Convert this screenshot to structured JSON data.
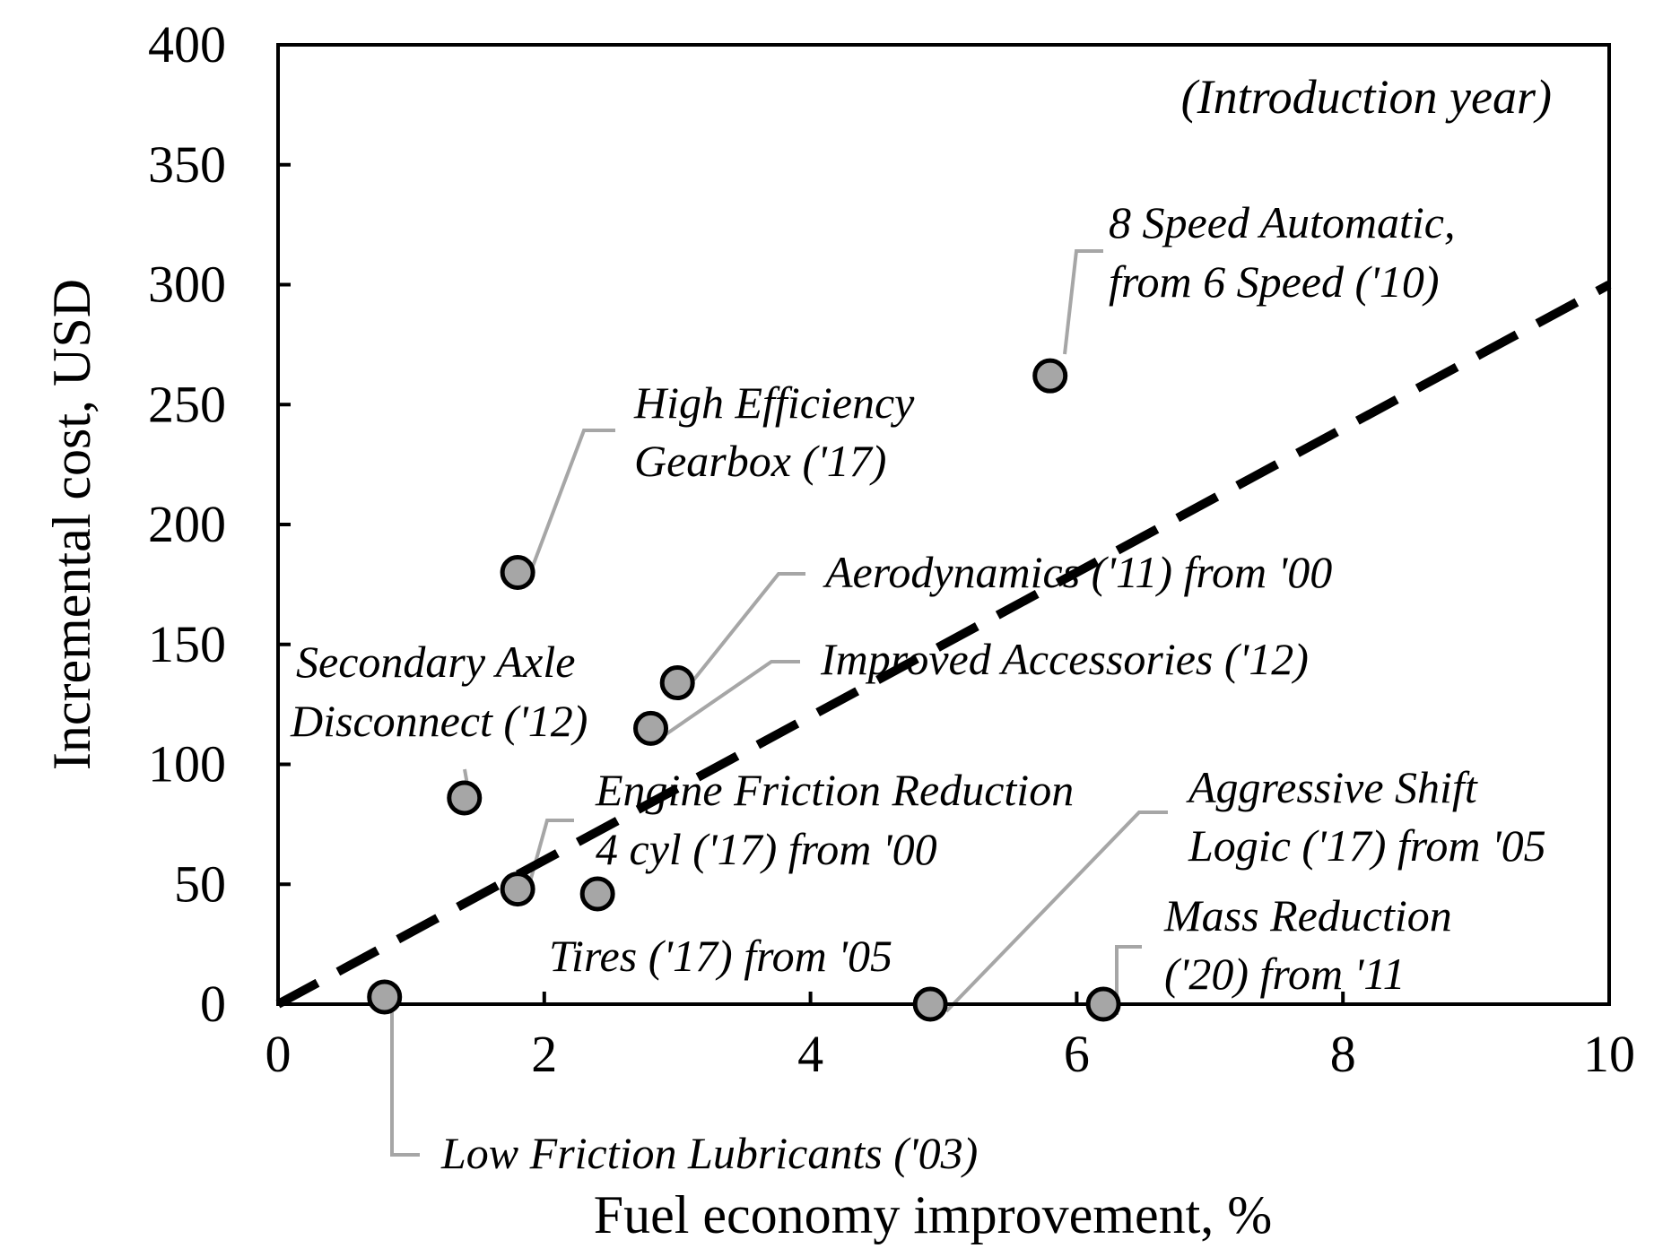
{
  "chart_data": {
    "type": "scatter",
    "title": "",
    "xlabel": "Fuel economy improvement, %",
    "ylabel": "Incremental cost, USD",
    "xlim": [
      0,
      10
    ],
    "ylim": [
      0,
      400
    ],
    "x_ticks": [
      0,
      2,
      4,
      6,
      8,
      10
    ],
    "y_ticks": [
      0,
      50,
      100,
      150,
      200,
      250,
      300,
      350,
      400
    ],
    "grid": false,
    "note": "(Introduction year)",
    "points": [
      {
        "name": "8-speed-automatic",
        "x": 5.8,
        "y": 262,
        "label": [
          "8 Speed Automatic,",
          "from 6 Speed ('10)"
        ]
      },
      {
        "name": "high-efficiency-gearbox",
        "x": 1.8,
        "y": 180,
        "label": [
          "High Efficiency",
          "Gearbox ('17)"
        ]
      },
      {
        "name": "aerodynamics",
        "x": 3.0,
        "y": 134,
        "label": [
          "Aerodynamics ('11) from '00"
        ]
      },
      {
        "name": "improved-accessories",
        "x": 2.8,
        "y": 115,
        "label": [
          "Improved Accessories ('12)"
        ]
      },
      {
        "name": "secondary-axle-disconnect",
        "x": 1.4,
        "y": 86,
        "label": [
          "Secondary Axle",
          "Disconnect ('12)"
        ]
      },
      {
        "name": "engine-friction-reduction",
        "x": 1.8,
        "y": 48,
        "label": [
          "Engine Friction Reduction",
          "4 cyl ('17) from '00"
        ]
      },
      {
        "name": "tires",
        "x": 2.4,
        "y": 46,
        "label": [
          "Tires ('17) from '05"
        ]
      },
      {
        "name": "low-friction-lubricants",
        "x": 0.8,
        "y": 3,
        "label": [
          "Low Friction Lubricants ('03)"
        ]
      },
      {
        "name": "aggressive-shift-logic",
        "x": 4.9,
        "y": 0,
        "label": [
          "Aggressive Shift",
          "Logic ('17) from '05"
        ]
      },
      {
        "name": "mass-reduction",
        "x": 6.2,
        "y": 0,
        "label": [
          "Mass Reduction",
          "('20) from '11"
        ]
      }
    ],
    "trendline": {
      "style": "dashed",
      "x": [
        0,
        10
      ],
      "y": [
        0,
        300
      ]
    }
  }
}
